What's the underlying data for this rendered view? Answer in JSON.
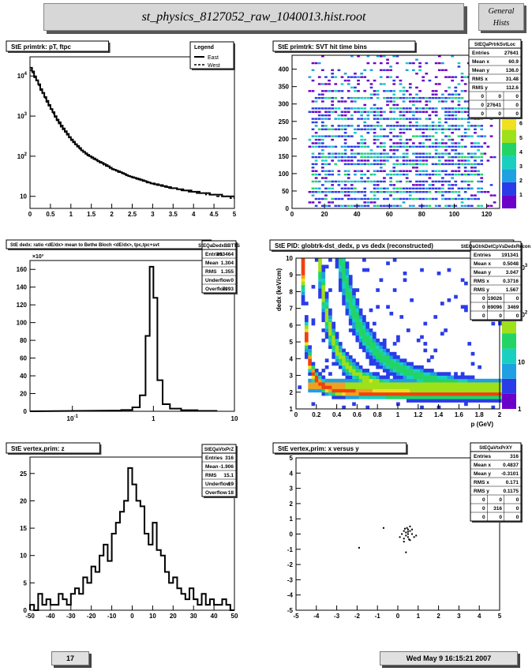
{
  "header": {
    "title": "st_physics_8127052_raw_1040013.hist.root",
    "general_line1": "General",
    "general_line2": "Hists"
  },
  "footer": {
    "page": "17",
    "date": "Wed May  9 16:15:21 2007"
  },
  "colors": {
    "header_bg": "#d7d7d7",
    "panel_bg": "#ffffff",
    "palette": [
      "#6b00c9",
      "#2a3ce8",
      "#1fa0e0",
      "#19d0c0",
      "#22d466",
      "#9ee01a",
      "#f0e020",
      "#f0a020",
      "#f04010",
      "#c00000"
    ]
  },
  "chart_data": [
    {
      "id": "pt",
      "type": "line",
      "title": "StE primtrk: pT, ftpc",
      "xlim": [
        0,
        5
      ],
      "ylim": [
        5,
        30000
      ],
      "ylog": true,
      "xticks": [
        "0",
        "0.5",
        "1",
        "1.5",
        "2",
        "2.5",
        "3",
        "3.5",
        "4",
        "4.5",
        "5"
      ],
      "yticks": [
        {
          "v": 10,
          "l": "10"
        },
        {
          "v": 100,
          "l": "10^2"
        },
        {
          "v": 1000,
          "l": "10^3"
        },
        {
          "v": 10000,
          "l": "10^4"
        }
      ],
      "legend": {
        "title": "Legend",
        "entries": [
          "East",
          "West"
        ]
      },
      "series": [
        {
          "name": "East",
          "x0": 0,
          "dx": 0.05,
          "values": [
            16000,
            13000,
            9800,
            7800,
            6200,
            4700,
            3800,
            3000,
            2400,
            1900,
            1500,
            1250,
            1000,
            820,
            700,
            580,
            490,
            420,
            360,
            300,
            260,
            230,
            200,
            180,
            160,
            140,
            128,
            118,
            108,
            100,
            94,
            88,
            82,
            76,
            72,
            68,
            64,
            60,
            56,
            52,
            48,
            46,
            44,
            42,
            40,
            38,
            36,
            34,
            32,
            31,
            30,
            29,
            28,
            27,
            26,
            25,
            24,
            23,
            22,
            21,
            21,
            20,
            20,
            19,
            19,
            18,
            18,
            17,
            17,
            16,
            16,
            16,
            15,
            15,
            15,
            14,
            14,
            14,
            14,
            13,
            13,
            13,
            13,
            12,
            12,
            12,
            12,
            12,
            11,
            11,
            11,
            11,
            11,
            11,
            10,
            10,
            10,
            10,
            10,
            10
          ]
        },
        {
          "name": "West",
          "x0": 0,
          "dx": 0.05,
          "values": [
            14000,
            12000,
            9200,
            7300,
            5800,
            4400,
            3500,
            2800,
            2250,
            1800,
            1400,
            1150,
            950,
            780,
            650,
            540,
            460,
            400,
            340,
            290,
            250,
            220,
            195,
            172,
            152,
            136,
            124,
            114,
            104,
            97,
            90,
            84,
            79,
            74,
            69,
            65,
            61,
            57,
            54,
            50,
            47,
            45,
            43,
            40,
            38,
            37,
            35,
            33,
            32,
            30,
            29,
            28,
            27,
            26,
            25,
            24,
            23,
            22,
            22,
            21,
            20,
            20,
            19,
            19,
            18,
            18,
            17,
            17,
            16,
            16,
            16,
            15,
            15,
            15,
            14,
            14,
            14,
            13,
            13,
            13,
            13,
            12,
            12,
            12,
            12,
            12,
            11,
            11,
            11,
            11,
            11,
            10,
            10,
            10,
            10,
            10,
            10,
            10,
            9,
            9
          ]
        }
      ]
    },
    {
      "id": "svt",
      "type": "heatmap",
      "title": "StE primtrk: SVT hit time bins",
      "xlim": [
        0,
        128
      ],
      "ylim": [
        0,
        440
      ],
      "xticks": [
        "0",
        "20",
        "40",
        "60",
        "80",
        "100",
        "120"
      ],
      "yticks": [
        "0",
        "50",
        "100",
        "150",
        "200",
        "250",
        "300",
        "350",
        "400"
      ],
      "zticks": [
        "0",
        "1",
        "2",
        "3",
        "4",
        "5",
        "6",
        "7",
        "8",
        "9"
      ],
      "stats": {
        "name": "StEQaPrtrkSvtLoc",
        "rows": [
          [
            "Entries",
            "27641"
          ],
          [
            "Mean x",
            "60.9"
          ],
          [
            "Mean y",
            "136.0"
          ],
          [
            "RMS x",
            "31.48"
          ],
          [
            "RMS y",
            "112.6"
          ]
        ],
        "grid": [
          [
            "0",
            "0",
            "0"
          ],
          [
            "0",
            "27641",
            "0"
          ],
          [
            "0",
            "0",
            "0"
          ]
        ]
      }
    },
    {
      "id": "dedx_ratio",
      "type": "bar",
      "title": "StE dedx: ratio <dE/dx> mean to Bethe Bloch <dE/dx>, tpc,tpc+svt",
      "xlim": [
        0.03,
        10
      ],
      "xlog": true,
      "ylim": [
        0,
        170000
      ],
      "yscale_label": "×10³",
      "xticks": [
        {
          "v": 0.1,
          "l": "10^-1"
        },
        {
          "v": 1,
          "l": "1"
        },
        {
          "v": 10,
          "l": "10"
        }
      ],
      "yticks": [
        {
          "v": 0,
          "l": "0"
        },
        {
          "v": 20000,
          "l": "20"
        },
        {
          "v": 40000,
          "l": "40"
        },
        {
          "v": 60000,
          "l": "60"
        },
        {
          "v": 80000,
          "l": "80"
        },
        {
          "v": 100000,
          "l": "100"
        },
        {
          "v": 120000,
          "l": "120"
        },
        {
          "v": 140000,
          "l": "140"
        },
        {
          "v": 160000,
          "l": "160"
        }
      ],
      "bins": [
        {
          "x0": 0.3,
          "x1": 0.4,
          "v": 800
        },
        {
          "x0": 0.4,
          "x1": 0.55,
          "v": 1500
        },
        {
          "x0": 0.55,
          "x1": 0.68,
          "v": 4500
        },
        {
          "x0": 0.68,
          "x1": 0.8,
          "v": 18000
        },
        {
          "x0": 0.8,
          "x1": 0.9,
          "v": 85000
        },
        {
          "x0": 0.9,
          "x1": 1.0,
          "v": 163000
        },
        {
          "x0": 1.0,
          "x1": 1.12,
          "v": 128000
        },
        {
          "x0": 1.12,
          "x1": 1.3,
          "v": 35000
        },
        {
          "x0": 1.3,
          "x1": 1.6,
          "v": 8000
        },
        {
          "x0": 1.6,
          "x1": 2.2,
          "v": 3000
        },
        {
          "x0": 2.2,
          "x1": 3.5,
          "v": 1200
        },
        {
          "x0": 3.5,
          "x1": 6,
          "v": 500
        }
      ],
      "stats": {
        "name": "StEQaDedxBBTTS",
        "rows": [
          [
            "Entries",
            "393464"
          ],
          [
            "Mean",
            "1.304"
          ],
          [
            "RMS",
            "1.355"
          ],
          [
            "Underflow",
            "0"
          ],
          [
            "Overflow",
            "7393"
          ]
        ]
      }
    },
    {
      "id": "pid",
      "type": "heatmap",
      "title": "StE PID: globtrk-dst_dedx,  p vs dedx (reconstructed)",
      "xlabel": "p (GeV)",
      "ylabel": "dedx (keV/cm)",
      "xlim": [
        0,
        2
      ],
      "ylim": [
        1,
        10
      ],
      "xticks": [
        "0",
        "0.2",
        "0.4",
        "0.6",
        "0.8",
        "1",
        "1.2",
        "1.4",
        "1.6",
        "1.8",
        "2"
      ],
      "yticks": [
        "1",
        "2",
        "3",
        "4",
        "5",
        "6",
        "7",
        "8",
        "9",
        "10"
      ],
      "zticks": [
        {
          "v": 1,
          "l": "1"
        },
        {
          "v": 10,
          "l": "10"
        },
        {
          "v": 100,
          "l": "10^2"
        },
        {
          "v": 1000,
          "l": "10^3"
        }
      ],
      "stats": {
        "name": "StEQaGtrkDetCpVsDedxRecon",
        "rows": [
          [
            "Entries",
            "191341"
          ],
          [
            "Mean x",
            "0.5048"
          ],
          [
            "Mean y",
            "3.047"
          ],
          [
            "RMS x",
            "0.3716"
          ],
          [
            "RMS y",
            "1.567"
          ]
        ],
        "grid": [
          [
            "0",
            "19026",
            "0"
          ],
          [
            "0",
            "69096",
            "3469"
          ],
          [
            "0",
            "0",
            "0"
          ]
        ]
      }
    },
    {
      "id": "vtxz",
      "type": "bar",
      "title": "StE  vertex,prim: z",
      "xlim": [
        -50,
        50
      ],
      "ylim": [
        0,
        28
      ],
      "xticks": [
        "-50",
        "-40",
        "-30",
        "-20",
        "-10",
        "0",
        "10",
        "20",
        "30",
        "40",
        "50"
      ],
      "yticks": [
        "0",
        "5",
        "10",
        "15",
        "20",
        "25"
      ],
      "x0": -50,
      "dx": 2,
      "values": [
        1,
        0,
        3,
        1,
        2,
        1,
        1,
        3,
        2,
        1,
        3,
        4,
        3,
        6,
        5,
        8,
        7,
        10,
        12,
        9,
        14,
        16,
        18,
        20,
        26,
        23,
        20,
        19,
        14,
        12,
        16,
        11,
        10,
        7,
        5,
        6,
        4,
        3,
        2,
        4,
        2,
        1,
        3,
        1,
        2,
        1,
        1,
        2,
        1,
        0
      ],
      "stats": {
        "name": "StEQaVtxPrZ",
        "rows": [
          [
            "Entries",
            "316"
          ],
          [
            "Mean",
            "-1.906"
          ],
          [
            "RMS",
            "15.1"
          ],
          [
            "Underflow",
            "19"
          ],
          [
            "Overflow",
            "18"
          ]
        ]
      }
    },
    {
      "id": "vtxxy",
      "type": "scatter",
      "title": "StE  vertex,prim: x versus y",
      "xlim": [
        -5,
        5
      ],
      "ylim": [
        -5,
        5
      ],
      "xticks": [
        "-5",
        "-4",
        "-3",
        "-2",
        "-1",
        "0",
        "1",
        "2",
        "3",
        "4",
        "5"
      ],
      "yticks": [
        "-5",
        "-4",
        "-3",
        "-2",
        "-1",
        "0",
        "1",
        "2",
        "3",
        "4",
        "5"
      ],
      "points": [
        [
          0.3,
          0.2
        ],
        [
          0.4,
          0.1
        ],
        [
          0.5,
          0.3
        ],
        [
          0.6,
          0.2
        ],
        [
          0.4,
          -0.1
        ],
        [
          0.5,
          -0.2
        ],
        [
          0.7,
          0.0
        ],
        [
          0.3,
          -0.3
        ],
        [
          0.6,
          -0.4
        ],
        [
          0.2,
          0.0
        ],
        [
          0.5,
          0.0
        ],
        [
          0.8,
          -0.2
        ],
        [
          0.45,
          0.4
        ],
        [
          0.55,
          -0.35
        ],
        [
          0.35,
          0.35
        ],
        [
          0.1,
          -0.2
        ],
        [
          -0.7,
          0.4
        ],
        [
          -1.9,
          -0.9
        ],
        [
          0.4,
          -1.2
        ],
        [
          0.6,
          0.5
        ],
        [
          0.3,
          -0.5
        ],
        [
          0.7,
          0.3
        ],
        [
          0.9,
          -0.1
        ],
        [
          0.5,
          0.15
        ]
      ],
      "stats": {
        "name": "StEQaVtxPrXY",
        "rows": [
          [
            "Entries",
            "316"
          ],
          [
            "Mean x",
            "0.4837"
          ],
          [
            "Mean y",
            "-0.3101"
          ],
          [
            "RMS x",
            "0.171"
          ],
          [
            "RMS y",
            "0.1175"
          ]
        ],
        "grid": [
          [
            "0",
            "0",
            "0"
          ],
          [
            "0",
            "316",
            "0"
          ],
          [
            "0",
            "0",
            "0"
          ]
        ]
      }
    }
  ]
}
